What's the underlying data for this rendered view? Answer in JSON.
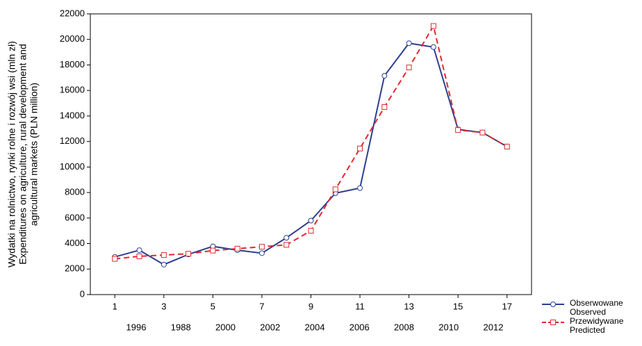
{
  "chart_data": {
    "type": "line",
    "ylabel": [
      "Wydatki na rolnictwo, rynki rolne i rozwój wsi (mln zł)",
      "Expenditures on agriculture, rural development and",
      "agricultural markets (PLN million)"
    ],
    "x": [
      1,
      2,
      3,
      4,
      5,
      6,
      7,
      8,
      9,
      10,
      11,
      12,
      13,
      14,
      15,
      16,
      17
    ],
    "series": [
      {
        "name": "Obserwowane\nObserved",
        "color": "#2c3e91",
        "marker": "circle",
        "dashed": false,
        "values": [
          2950,
          3480,
          2350,
          3150,
          3780,
          3480,
          3250,
          4450,
          5800,
          7950,
          8350,
          17150,
          19700,
          19400,
          12950,
          12700,
          11600
        ]
      },
      {
        "name": "Przewidywane\nPredicted",
        "color": "#e0282d",
        "marker": "square",
        "dashed": true,
        "values": [
          2800,
          3000,
          3100,
          3200,
          3450,
          3600,
          3750,
          3900,
          5000,
          8250,
          11450,
          14700,
          17800,
          21050,
          12900,
          12700,
          11600
        ]
      }
    ],
    "secondary_labels": [
      "1996",
      "1988",
      "2000",
      "2002",
      "2004",
      "2006",
      "2008",
      "2010",
      "2012"
    ],
    "xlim": [
      0,
      18
    ],
    "xticks": [
      1,
      3,
      5,
      7,
      9,
      11,
      13,
      15,
      17
    ],
    "ylim": [
      0,
      22000
    ],
    "yticks": [
      0,
      2000,
      4000,
      6000,
      8000,
      10000,
      12000,
      14000,
      16000,
      18000,
      20000,
      22000
    ],
    "grid": false
  }
}
